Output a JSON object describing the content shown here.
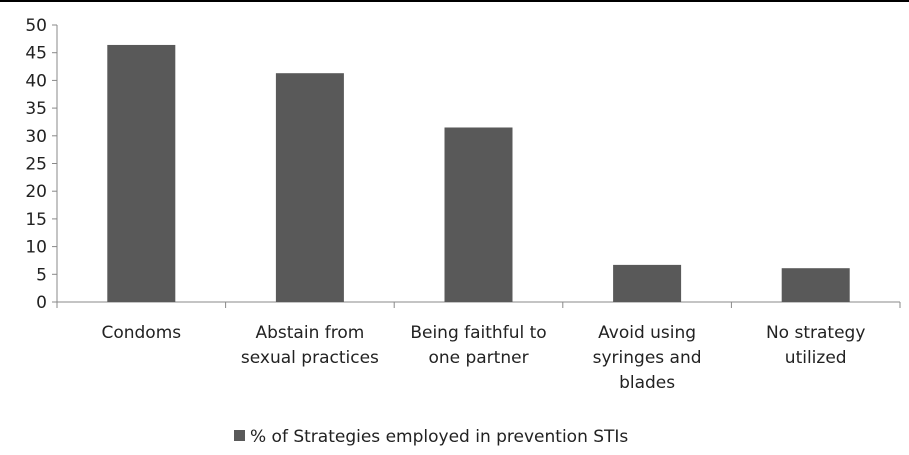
{
  "chart_data": {
    "type": "bar",
    "categories": [
      [
        "Condoms"
      ],
      [
        "Abstain from",
        "sexual practices"
      ],
      [
        "Being faithful to",
        "one partner"
      ],
      [
        "Avoid using",
        "syringes and",
        "blades"
      ],
      [
        "No strategy",
        "utilized"
      ]
    ],
    "series": [
      {
        "name": "% of Strategies employed in prevention STIs",
        "values": [
          46.4,
          41.3,
          31.5,
          6.7,
          6.1
        ]
      }
    ],
    "ylim": [
      0,
      50
    ],
    "yticks": [
      "0",
      "5",
      "10",
      "15",
      "20",
      "25",
      "30",
      "35",
      "40",
      "45",
      "50"
    ],
    "grid": false,
    "legend_position": "bottom",
    "bar_color": "#595959"
  }
}
